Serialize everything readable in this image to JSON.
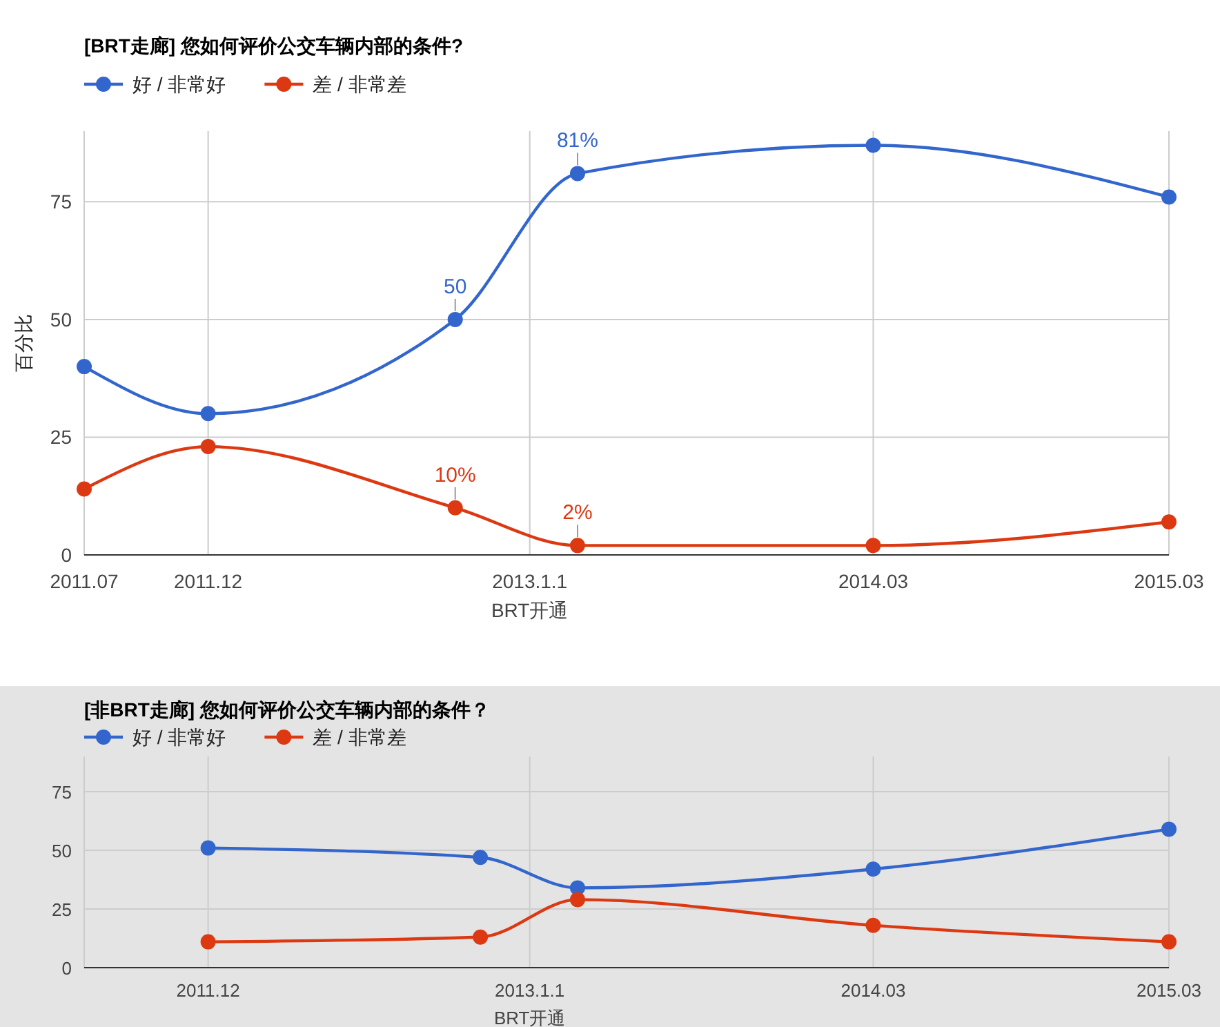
{
  "chart_data": [
    {
      "type": "line",
      "title": "[BRT走廊] 您如何评价公交车辆内部的条件?",
      "ylabel": "百分比",
      "x": [
        "2011-07",
        "2011-12",
        "2012-10",
        "2013-03",
        "2014-03",
        "2015-03"
      ],
      "xlim": [
        "2011-07",
        "2015-03"
      ],
      "xticks": [
        {
          "value": "2011-07",
          "label": "2011.07"
        },
        {
          "value": "2011-12",
          "label": "2011.12"
        },
        {
          "value": "2013-01-01",
          "label": "2013.1.1\nBRT开通"
        },
        {
          "value": "2014-03",
          "label": "2014.03"
        },
        {
          "value": "2015-03",
          "label": "2015.03"
        }
      ],
      "ylim": [
        0,
        90
      ],
      "yticks": [
        0,
        25,
        50,
        75
      ],
      "grid": true,
      "legend": "top left",
      "marker": "circle",
      "line_style": "solid",
      "series": [
        {
          "name": "好 / 非常好",
          "color": "#3366cc",
          "values": [
            40,
            30,
            50,
            81,
            87,
            76
          ],
          "value_labels": [
            null,
            null,
            "50",
            "81%",
            null,
            null
          ]
        },
        {
          "name": "差 / 非常差",
          "color": "#dc3912",
          "values": [
            14,
            23,
            10,
            2,
            2,
            7
          ],
          "value_labels": [
            null,
            null,
            "10%",
            "2%",
            null,
            null
          ]
        }
      ]
    },
    {
      "type": "line",
      "title": "[非BRT走廊] 您如何评价公交车辆内部的条件？",
      "x": [
        "2011-12",
        "2012-11",
        "2013-03",
        "2014-03",
        "2015-03"
      ],
      "xlim": [
        "2011-07",
        "2015-03"
      ],
      "xticks": [
        {
          "value": "2011-12",
          "label": "2011.12"
        },
        {
          "value": "2013-01-01",
          "label": "2013.1.1\nBRT开通"
        },
        {
          "value": "2014-03",
          "label": "2014.03"
        },
        {
          "value": "2015-03",
          "label": "2015.03"
        }
      ],
      "ylim": [
        0,
        90
      ],
      "yticks": [
        0,
        25,
        50,
        75
      ],
      "grid": true,
      "legend": "top left",
      "marker": "circle",
      "line_style": "solid",
      "series": [
        {
          "name": "好 / 非常好",
          "color": "#3366cc",
          "values": [
            51,
            47,
            34,
            42,
            59
          ]
        },
        {
          "name": "差 / 非常差",
          "color": "#dc3912",
          "values": [
            11,
            13,
            29,
            18,
            11
          ]
        }
      ]
    }
  ]
}
